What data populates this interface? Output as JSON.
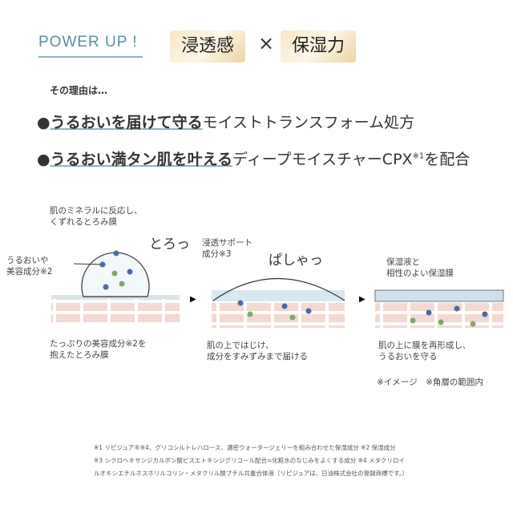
{
  "header": {
    "power_up": "POWER UP !",
    "badge1": "浸透感",
    "times": "×",
    "badge2": "保湿力"
  },
  "reason": "その理由は…",
  "points": [
    {
      "bullet": "●",
      "bold": "うるおいを届けて守る",
      "rest": "モイストトランスフォーム処方"
    },
    {
      "bullet": "●",
      "bold": "うるおい満タン肌を叶える",
      "rest": "ディープモイスチャーCPX",
      "sup": "※1",
      "tail": "を配合"
    }
  ],
  "steps": [
    {
      "top_label": [
        "肌のミネラルに反応し、",
        "くずれるとろみ膜"
      ],
      "side_label": [
        "うるおいや",
        "美容成分※2"
      ],
      "sfx": "とろっ",
      "caption": [
        "たっぷりの美容成分※2を",
        "抱えたとろみ膜"
      ]
    },
    {
      "top_label": [
        "浸透サポート",
        "成分※3"
      ],
      "sfx": "ぱしゃっ",
      "caption": [
        "肌の上ではじけ、",
        "成分をすみずみまで届ける"
      ]
    },
    {
      "top_label": [
        "保湿液と",
        "相性のよい保湿膜"
      ],
      "caption": [
        "肌の上に膜を再形成し、",
        "うるおいを守る"
      ]
    }
  ],
  "arrow": "▶",
  "note": "※イメージ　※角層の範囲内",
  "footnotes": [
    "※1 リピジュア®※4、グリコシルトレハロース、濃密ウォータージェリーを組み合わせた保湿成分 ※2 保湿成分",
    "※3 シクロヘキサンジカルボン酸ビスエトキシジグリコール配合=化粧水のなじみをよくする成分 ※4 メタクリロイ",
    "ルオキシエチルホスホリルコリン・メタクリル酸ブチル共重合体液（リピジュアは、日油株式会社の登録商標です。）"
  ],
  "colors": {
    "accent": "#5d8ea0",
    "skin": "#f2d9d2",
    "dot_blue": "#4a6aa8",
    "dot_green": "#7fa86a"
  }
}
